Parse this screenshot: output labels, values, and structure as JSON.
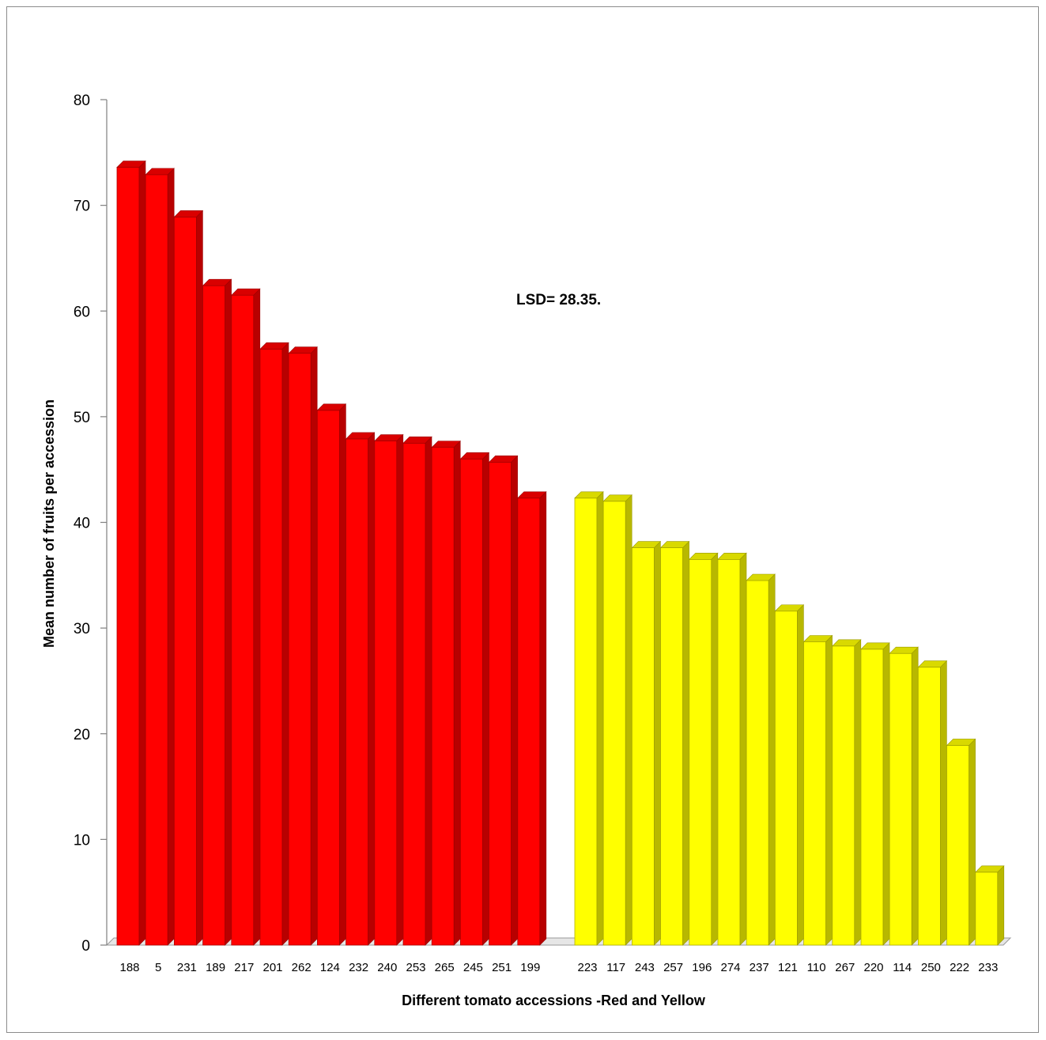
{
  "chart_data": {
    "type": "bar",
    "title": "",
    "xlabel": "Different  tomato accessions -Red and Yellow",
    "ylabel": "Mean  number of fruits per  accession",
    "ylim": [
      0,
      80
    ],
    "yticks": [
      0,
      10,
      20,
      30,
      40,
      50,
      60,
      70,
      80
    ],
    "annotation": "LSD= 28.35.",
    "grid": false,
    "legend": "none",
    "series": [
      {
        "color": "#ff0000",
        "categories": [
          "188",
          "5",
          "231",
          "189",
          "217",
          "201",
          "262",
          "124",
          "232",
          "240",
          "253",
          "265",
          "245",
          "251",
          "199"
        ],
        "values": [
          73.6,
          72.9,
          68.9,
          62.4,
          61.5,
          56.4,
          56.0,
          50.6,
          47.9,
          47.7,
          47.5,
          47.1,
          46.0,
          45.7,
          42.3
        ]
      },
      {
        "color": "#ffff00",
        "categories": [
          "223",
          "117",
          "243",
          "257",
          "196",
          "274",
          "237",
          "121",
          "110",
          "267",
          "220",
          "114",
          "250",
          "222",
          "233"
        ],
        "values": [
          42.3,
          42.0,
          37.6,
          37.6,
          36.5,
          36.5,
          34.5,
          31.6,
          28.7,
          28.3,
          28.0,
          27.6,
          26.3,
          18.9,
          6.9
        ]
      }
    ]
  }
}
